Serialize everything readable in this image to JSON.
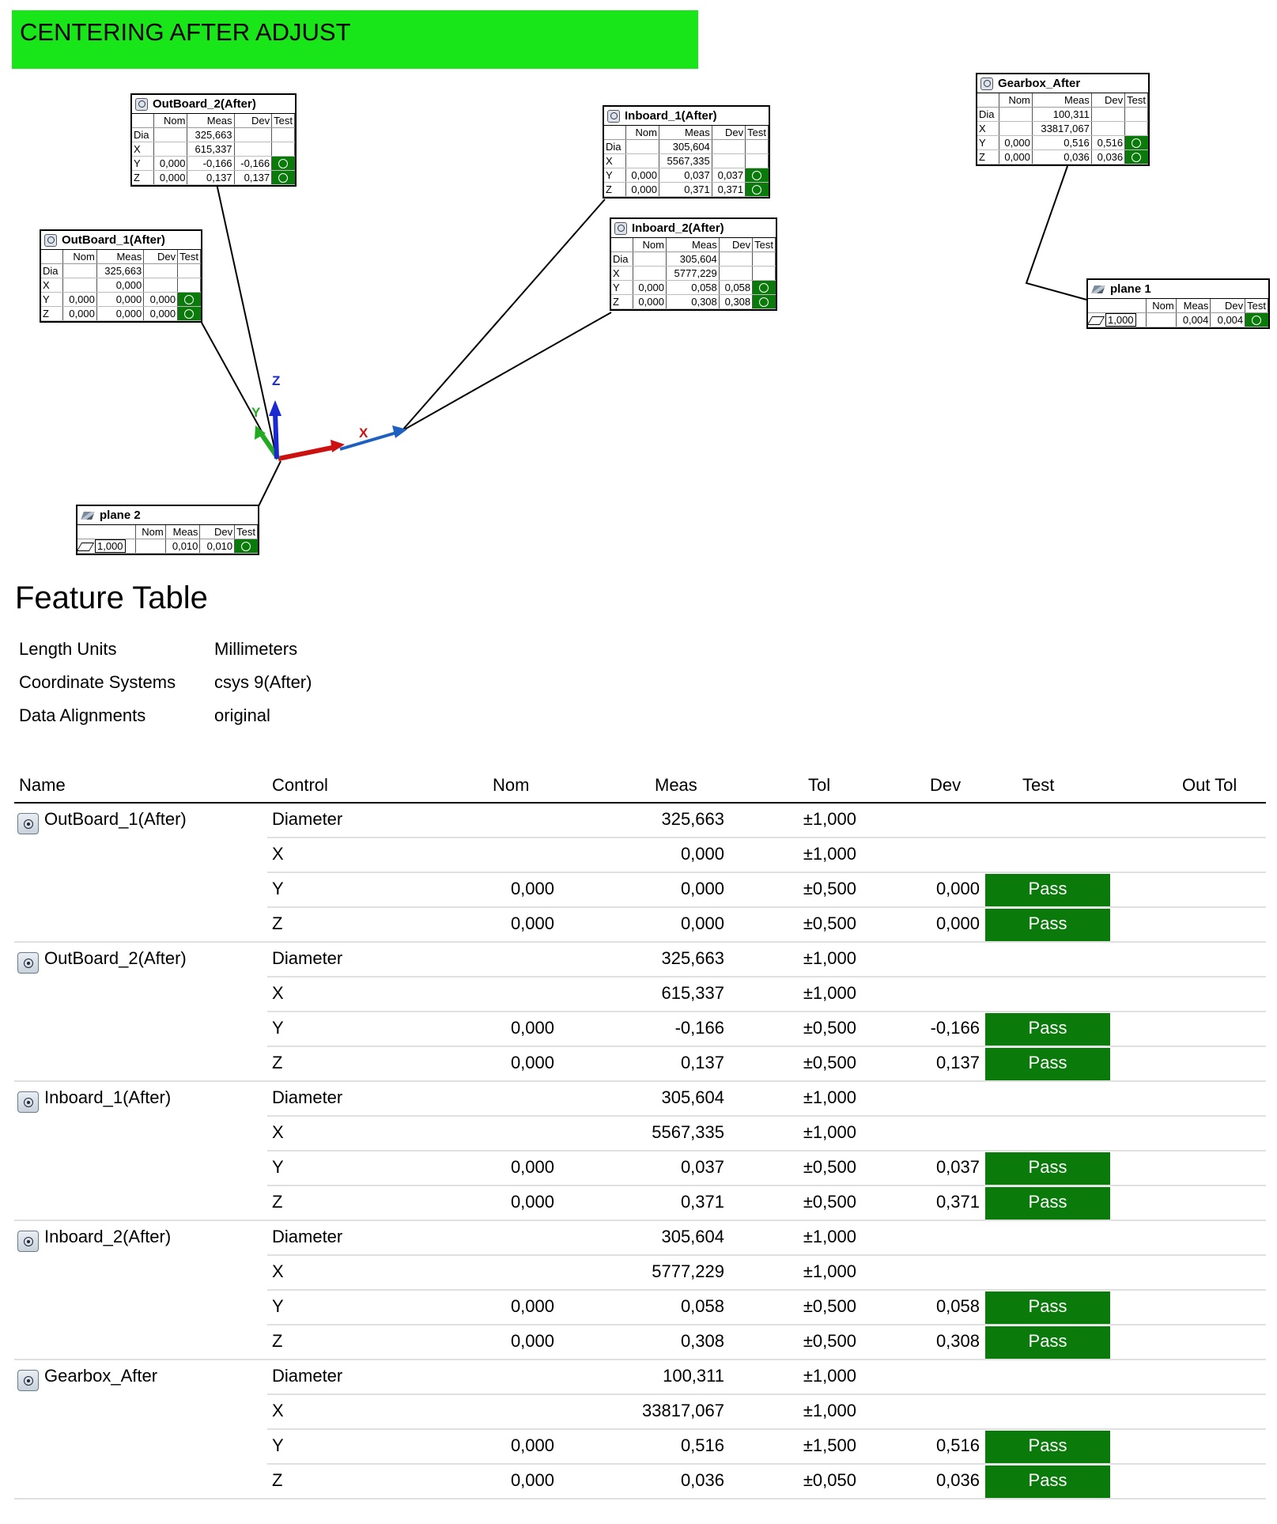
{
  "report_title": "CENTERING AFTER ADJUST",
  "colors": {
    "banner": "#19e619",
    "pass": "#0a7a0a",
    "axis_x": "#cc1111",
    "axis_y": "#22aa22",
    "axis_z": "#1a2ad0"
  },
  "diagram": {
    "axis_labels": {
      "x": "X",
      "y": "Y",
      "z": "Z"
    },
    "callouts": [
      {
        "title": "OutBoard_2(After)",
        "icon": "circle-feature-icon",
        "headers": [
          "",
          "Nom",
          "Meas",
          "Dev",
          "Test"
        ],
        "rows": [
          {
            "label": "Dia",
            "nom": "",
            "meas": "325,663",
            "dev": "",
            "pass": false
          },
          {
            "label": "X",
            "nom": "",
            "meas": "615,337",
            "dev": "",
            "pass": false
          },
          {
            "label": "Y",
            "nom": "0,000",
            "meas": "-0,166",
            "dev": "-0,166",
            "pass": true
          },
          {
            "label": "Z",
            "nom": "0,000",
            "meas": "0,137",
            "dev": "0,137",
            "pass": true
          }
        ]
      },
      {
        "title": "OutBoard_1(After)",
        "icon": "circle-feature-icon",
        "headers": [
          "",
          "Nom",
          "Meas",
          "Dev",
          "Test"
        ],
        "rows": [
          {
            "label": "Dia",
            "nom": "",
            "meas": "325,663",
            "dev": "",
            "pass": false
          },
          {
            "label": "X",
            "nom": "",
            "meas": "0,000",
            "dev": "",
            "pass": false
          },
          {
            "label": "Y",
            "nom": "0,000",
            "meas": "0,000",
            "dev": "0,000",
            "pass": true
          },
          {
            "label": "Z",
            "nom": "0,000",
            "meas": "0,000",
            "dev": "0,000",
            "pass": true
          }
        ]
      },
      {
        "title": "Inboard_1(After)",
        "icon": "circle-feature-icon",
        "headers": [
          "",
          "Nom",
          "Meas",
          "Dev",
          "Test"
        ],
        "rows": [
          {
            "label": "Dia",
            "nom": "",
            "meas": "305,604",
            "dev": "",
            "pass": false
          },
          {
            "label": "X",
            "nom": "",
            "meas": "5567,335",
            "dev": "",
            "pass": false
          },
          {
            "label": "Y",
            "nom": "0,000",
            "meas": "0,037",
            "dev": "0,037",
            "pass": true
          },
          {
            "label": "Z",
            "nom": "0,000",
            "meas": "0,371",
            "dev": "0,371",
            "pass": true
          }
        ]
      },
      {
        "title": "Inboard_2(After)",
        "icon": "circle-feature-icon",
        "headers": [
          "",
          "Nom",
          "Meas",
          "Dev",
          "Test"
        ],
        "rows": [
          {
            "label": "Dia",
            "nom": "",
            "meas": "305,604",
            "dev": "",
            "pass": false
          },
          {
            "label": "X",
            "nom": "",
            "meas": "5777,229",
            "dev": "",
            "pass": false
          },
          {
            "label": "Y",
            "nom": "0,000",
            "meas": "0,058",
            "dev": "0,058",
            "pass": true
          },
          {
            "label": "Z",
            "nom": "0,000",
            "meas": "0,308",
            "dev": "0,308",
            "pass": true
          }
        ]
      },
      {
        "title": "Gearbox_After",
        "icon": "circle-feature-icon",
        "headers": [
          "",
          "Nom",
          "Meas",
          "Dev",
          "Test"
        ],
        "rows": [
          {
            "label": "Dia",
            "nom": "",
            "meas": "100,311",
            "dev": "",
            "pass": false
          },
          {
            "label": "X",
            "nom": "",
            "meas": "33817,067",
            "dev": "",
            "pass": false
          },
          {
            "label": "Y",
            "nom": "0,000",
            "meas": "0,516",
            "dev": "0,516",
            "pass": true
          },
          {
            "label": "Z",
            "nom": "0,000",
            "meas": "0,036",
            "dev": "0,036",
            "pass": true
          }
        ]
      },
      {
        "title": "plane 1",
        "icon": "plane-icon",
        "headers": [
          "",
          "Nom",
          "Meas",
          "Dev",
          "Test"
        ],
        "rows": [
          {
            "label": "1,000",
            "nom": "",
            "meas": "0,004",
            "dev": "0,004",
            "pass": true
          }
        ]
      },
      {
        "title": "plane 2",
        "icon": "plane-icon",
        "headers": [
          "",
          "Nom",
          "Meas",
          "Dev",
          "Test"
        ],
        "rows": [
          {
            "label": "1,000",
            "nom": "",
            "meas": "0,010",
            "dev": "0,010",
            "pass": true
          }
        ]
      }
    ]
  },
  "feature_table": {
    "title": "Feature Table",
    "meta": [
      {
        "key": "Length Units",
        "value": "Millimeters"
      },
      {
        "key": "Coordinate Systems",
        "value": "csys 9(After)"
      },
      {
        "key": "Data Alignments",
        "value": "original"
      }
    ],
    "columns": [
      "Name",
      "Control",
      "Nom",
      "Meas",
      "Tol",
      "Dev",
      "Test",
      "Out Tol"
    ],
    "features": [
      {
        "name": "OutBoard_1(After)",
        "rows": [
          {
            "control": "Diameter",
            "nom": "",
            "meas": "325,663",
            "tol": "±1,000",
            "dev": "",
            "test": ""
          },
          {
            "control": "X",
            "nom": "",
            "meas": "0,000",
            "tol": "±1,000",
            "dev": "",
            "test": ""
          },
          {
            "control": "Y",
            "nom": "0,000",
            "meas": "0,000",
            "tol": "±0,500",
            "dev": "0,000",
            "test": "Pass"
          },
          {
            "control": "Z",
            "nom": "0,000",
            "meas": "0,000",
            "tol": "±0,500",
            "dev": "0,000",
            "test": "Pass"
          }
        ]
      },
      {
        "name": "OutBoard_2(After)",
        "rows": [
          {
            "control": "Diameter",
            "nom": "",
            "meas": "325,663",
            "tol": "±1,000",
            "dev": "",
            "test": ""
          },
          {
            "control": "X",
            "nom": "",
            "meas": "615,337",
            "tol": "±1,000",
            "dev": "",
            "test": ""
          },
          {
            "control": "Y",
            "nom": "0,000",
            "meas": "-0,166",
            "tol": "±0,500",
            "dev": "-0,166",
            "test": "Pass"
          },
          {
            "control": "Z",
            "nom": "0,000",
            "meas": "0,137",
            "tol": "±0,500",
            "dev": "0,137",
            "test": "Pass"
          }
        ]
      },
      {
        "name": "Inboard_1(After)",
        "rows": [
          {
            "control": "Diameter",
            "nom": "",
            "meas": "305,604",
            "tol": "±1,000",
            "dev": "",
            "test": ""
          },
          {
            "control": "X",
            "nom": "",
            "meas": "5567,335",
            "tol": "±1,000",
            "dev": "",
            "test": ""
          },
          {
            "control": "Y",
            "nom": "0,000",
            "meas": "0,037",
            "tol": "±0,500",
            "dev": "0,037",
            "test": "Pass"
          },
          {
            "control": "Z",
            "nom": "0,000",
            "meas": "0,371",
            "tol": "±0,500",
            "dev": "0,371",
            "test": "Pass"
          }
        ]
      },
      {
        "name": "Inboard_2(After)",
        "rows": [
          {
            "control": "Diameter",
            "nom": "",
            "meas": "305,604",
            "tol": "±1,000",
            "dev": "",
            "test": ""
          },
          {
            "control": "X",
            "nom": "",
            "meas": "5777,229",
            "tol": "±1,000",
            "dev": "",
            "test": ""
          },
          {
            "control": "Y",
            "nom": "0,000",
            "meas": "0,058",
            "tol": "±0,500",
            "dev": "0,058",
            "test": "Pass"
          },
          {
            "control": "Z",
            "nom": "0,000",
            "meas": "0,308",
            "tol": "±0,500",
            "dev": "0,308",
            "test": "Pass"
          }
        ]
      },
      {
        "name": "Gearbox_After",
        "rows": [
          {
            "control": "Diameter",
            "nom": "",
            "meas": "100,311",
            "tol": "±1,000",
            "dev": "",
            "test": ""
          },
          {
            "control": "X",
            "nom": "",
            "meas": "33817,067",
            "tol": "±1,000",
            "dev": "",
            "test": ""
          },
          {
            "control": "Y",
            "nom": "0,000",
            "meas": "0,516",
            "tol": "±1,500",
            "dev": "0,516",
            "test": "Pass"
          },
          {
            "control": "Z",
            "nom": "0,000",
            "meas": "0,036",
            "tol": "±0,050",
            "dev": "0,036",
            "test": "Pass"
          }
        ]
      }
    ]
  }
}
